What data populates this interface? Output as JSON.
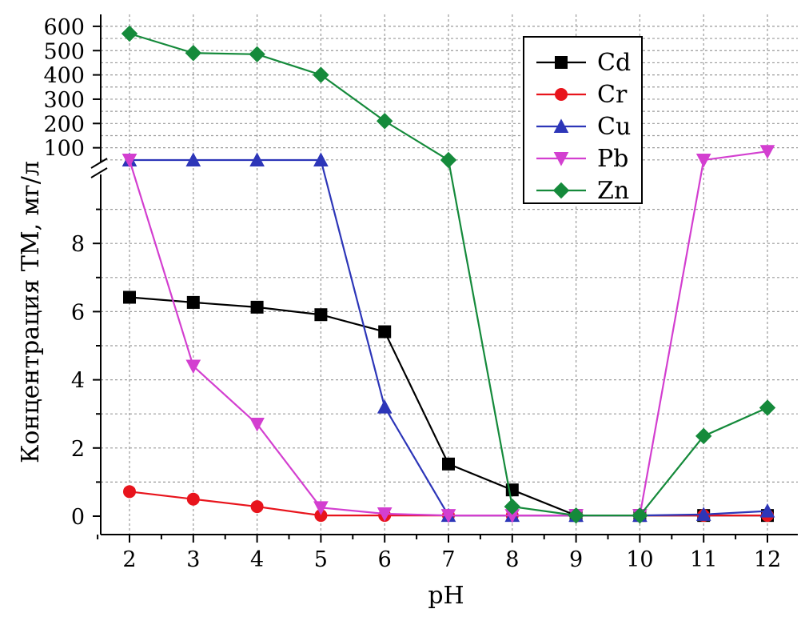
{
  "chart_data": {
    "type": "line",
    "xlabel": "pH",
    "ylabel": "Концентрация ТМ, мг/л",
    "x": [
      2,
      3,
      4,
      5,
      6,
      7,
      8,
      9,
      10,
      11,
      12
    ],
    "x_tick_labels": [
      "2",
      "3",
      "4",
      "5",
      "6",
      "7",
      "8",
      "9",
      "10",
      "11",
      "12"
    ],
    "broken_y_axis": true,
    "y_lower_segment": {
      "ylim": [
        0,
        10
      ],
      "tick_labels": [
        "0",
        "2",
        "4",
        "6",
        "8"
      ]
    },
    "y_upper_segment": {
      "ylim": [
        0,
        630
      ],
      "tick_labels": [
        "100",
        "200",
        "300",
        "400",
        "500",
        "600"
      ]
    },
    "grid": true,
    "legend_position": "top-right",
    "series": [
      {
        "name": "Cd",
        "color": "#000000",
        "marker": "square",
        "values": [
          6.42,
          6.27,
          6.13,
          5.91,
          5.41,
          1.53,
          0.77,
          0.02,
          0.02,
          0.02,
          0.02
        ]
      },
      {
        "name": "Cr",
        "color": "#e8141c",
        "marker": "circle",
        "values": [
          0.72,
          0.5,
          0.28,
          0.02,
          0.02,
          0.02,
          0.02,
          0.02,
          0.02,
          0.02,
          0.02
        ]
      },
      {
        "name": "Cu",
        "color": "#2d36b8",
        "marker": "triangle-up",
        "values": [
          ">50",
          ">50",
          ">50",
          ">50",
          3.2,
          0.02,
          0.02,
          0.02,
          0.02,
          0.05,
          0.15
        ]
      },
      {
        "name": "Pb",
        "color": "#d33fd0",
        "marker": "triangle-down",
        "values": [
          ">50",
          4.4,
          2.7,
          0.25,
          0.07,
          0.02,
          0.02,
          0.02,
          0.02,
          ">50",
          85
        ]
      },
      {
        "name": "Zn",
        "color": "#158a3b",
        "marker": "diamond",
        "values": [
          570,
          490,
          485,
          400,
          210,
          ">50",
          0.28,
          0.02,
          0.02,
          2.35,
          3.18
        ]
      }
    ]
  }
}
